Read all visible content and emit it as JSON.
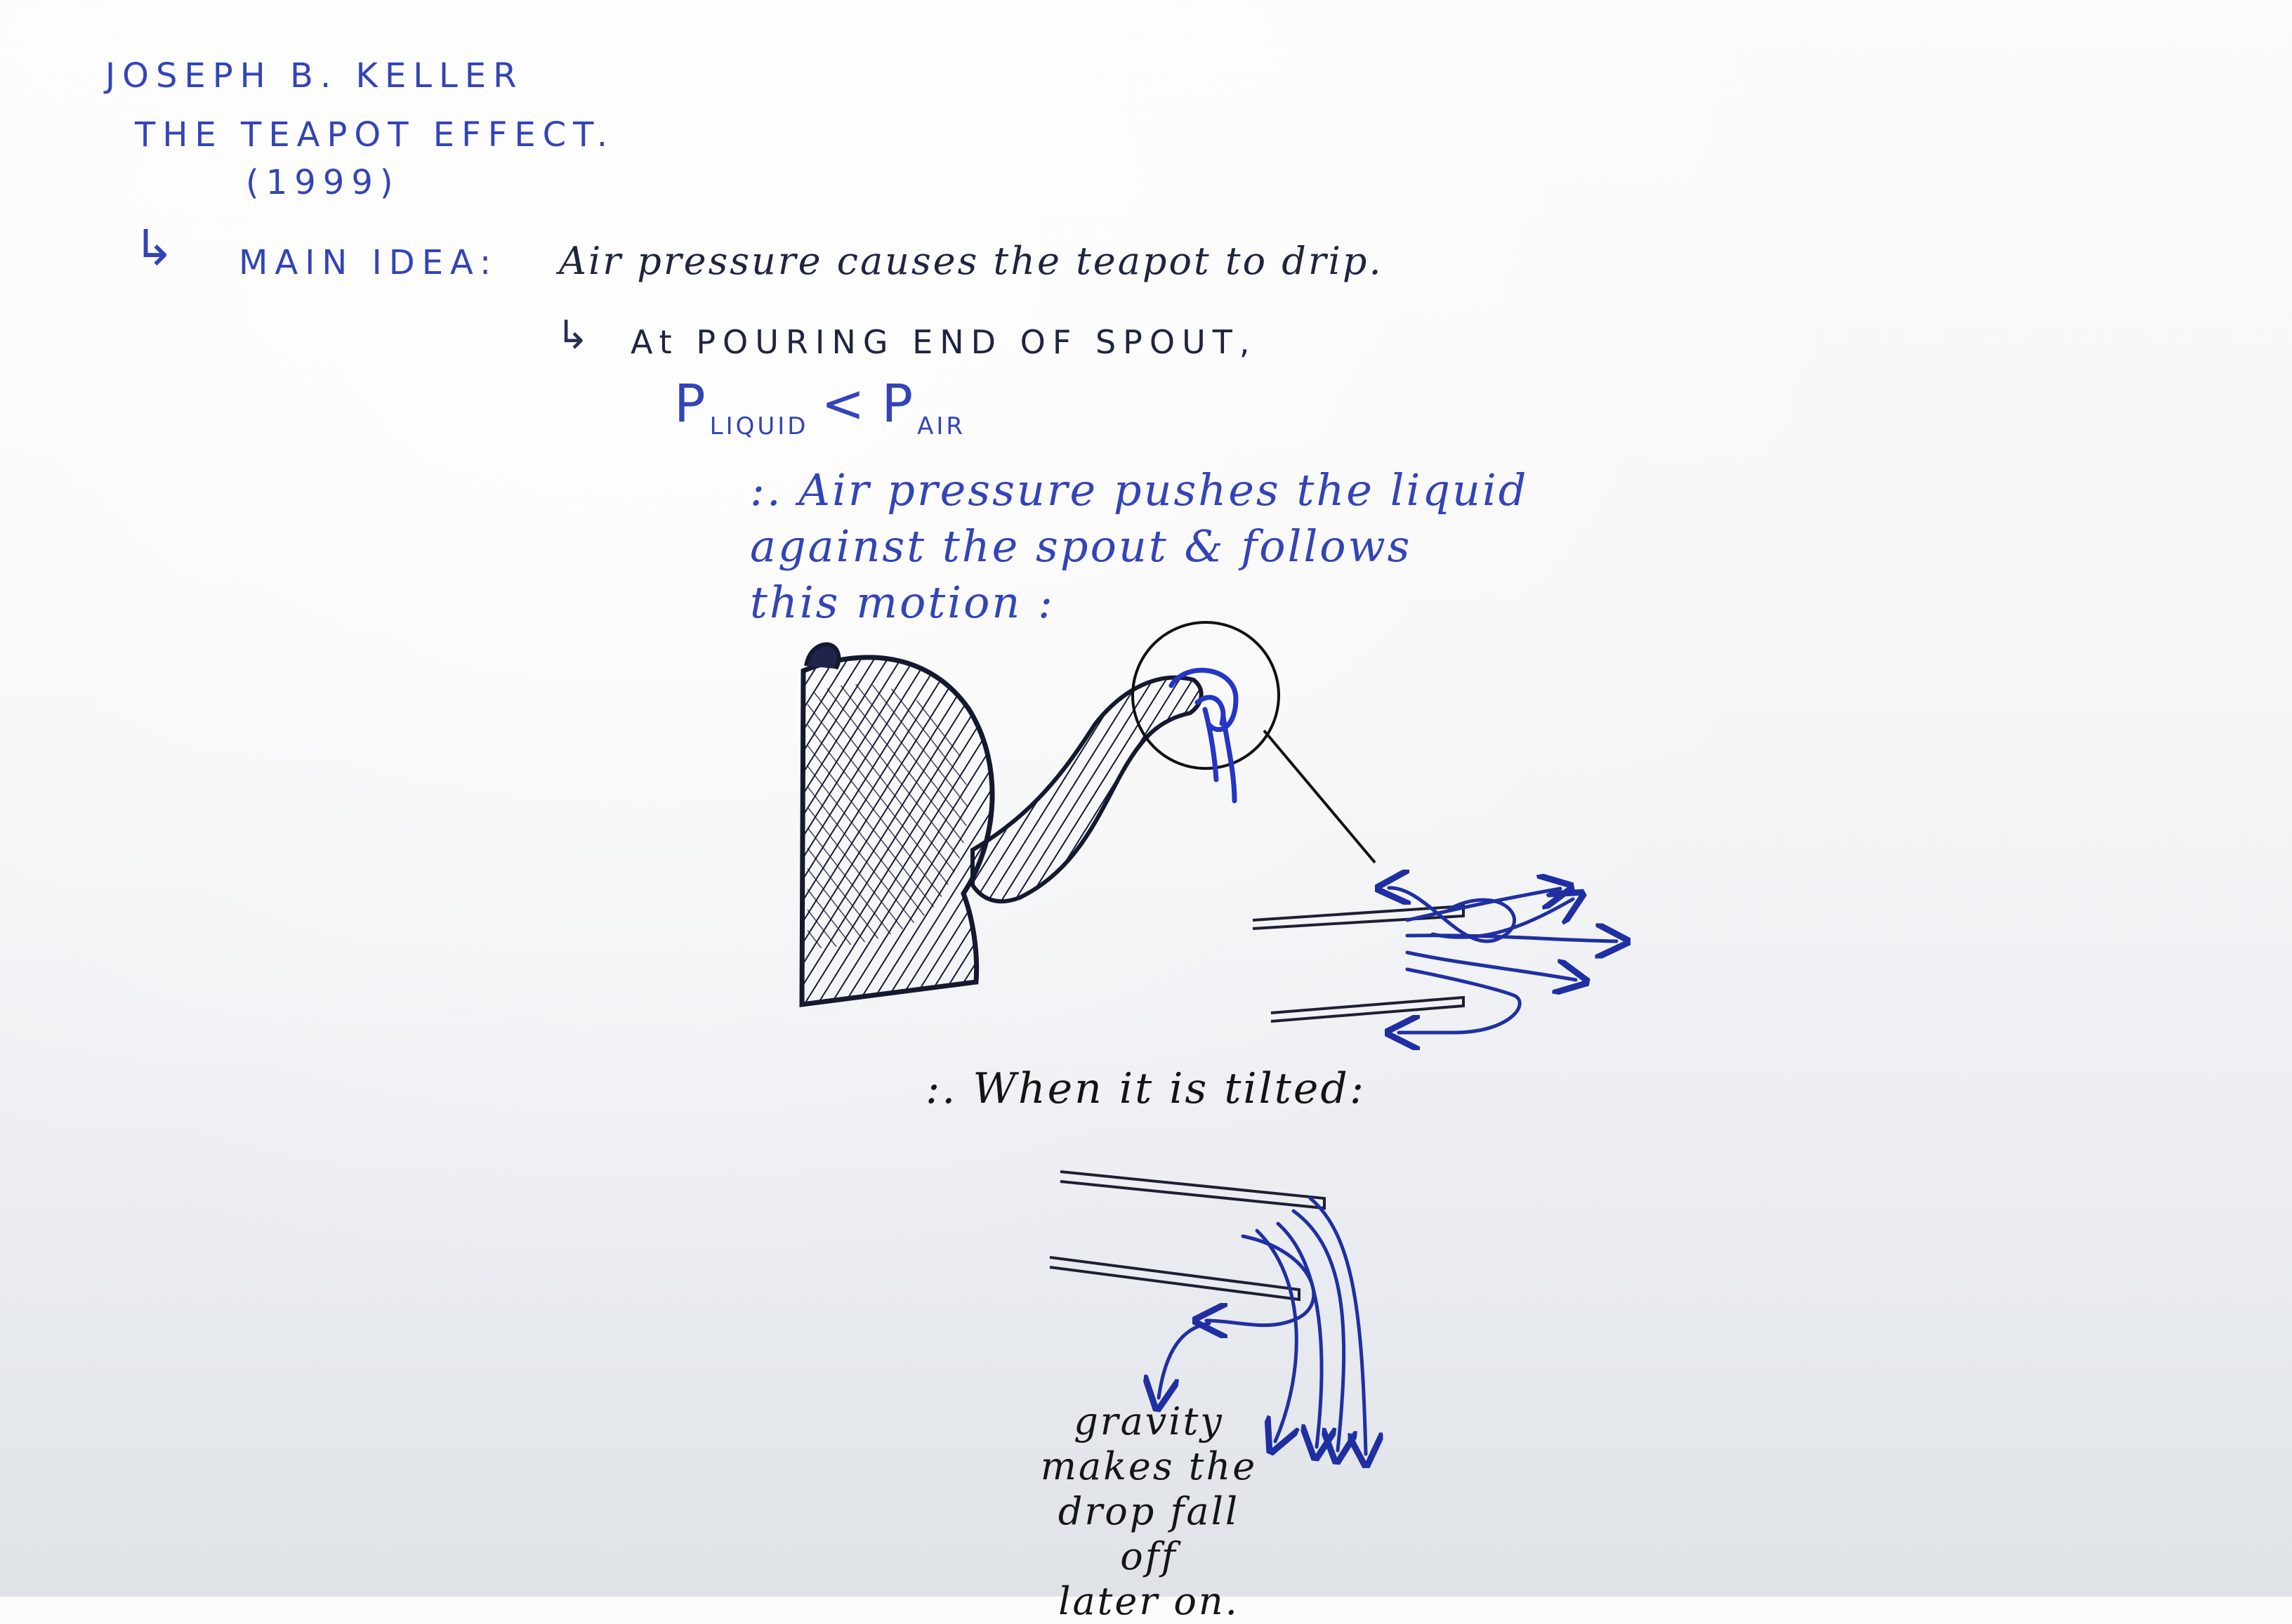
{
  "notes": {
    "author": "JOSEPH B. KELLER",
    "title": "THE TEAPOT EFFECT.",
    "year": "(1999)",
    "main_idea_label": "MAIN IDEA:",
    "main_idea_text": "Air pressure causes the teapot to drip.",
    "pouring_end": "At POURING END OF SPOUT,",
    "equation": {
      "p1": "P",
      "p1_sub": "LIQUID",
      "operator": "<",
      "p2": "P",
      "p2_sub": "AIR"
    },
    "explanation": [
      ":. Air pressure pushes the liquid",
      "against the spout & follows",
      "this motion :"
    ],
    "tilted_caption": ":. When it is tilted:",
    "gravity_note": [
      "gravity",
      "makes the",
      "drop fall off",
      "later on."
    ]
  },
  "icons": {
    "arrow_one": "arrow-right-icon",
    "arrow_two": "arrow-right-icon"
  },
  "colors": {
    "ink_blue": "#3344b8",
    "ink_dark": "#1f2440",
    "ink_black": "#141414",
    "arrow_blue": "#1f2fa3"
  }
}
